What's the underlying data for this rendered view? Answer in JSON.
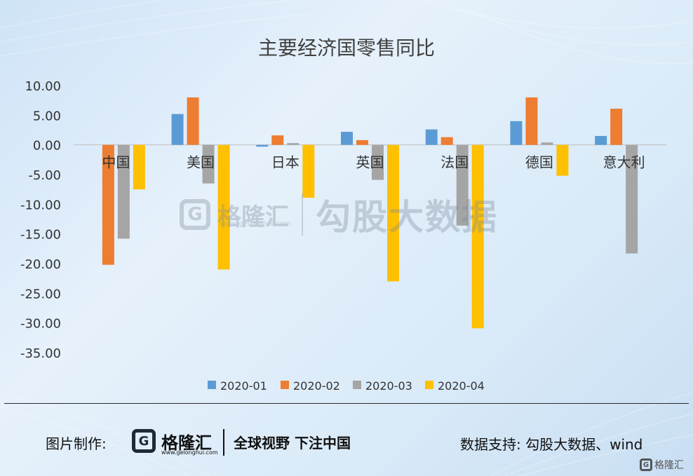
{
  "chart_data": {
    "type": "bar",
    "title": "主要经济国零售同比",
    "categories": [
      "中国",
      "美国",
      "日本",
      "英国",
      "法国",
      "德国",
      "意大利"
    ],
    "ylim": [
      -35,
      10
    ],
    "yticks": [
      "10.00",
      "5.00",
      "0.00",
      "-5.00",
      "-10.00",
      "-15.00",
      "-20.00",
      "-25.00",
      "-30.00",
      "-35.00"
    ],
    "grid": false,
    "legend_position": "bottom",
    "series": [
      {
        "name": "2020-01",
        "color": "#5b9bd5",
        "values": [
          null,
          5.2,
          -0.3,
          2.2,
          2.6,
          4.0,
          1.5
        ]
      },
      {
        "name": "2020-02",
        "color": "#ed7d31",
        "values": [
          -20.2,
          8.0,
          1.6,
          0.8,
          1.3,
          8.0,
          6.1
        ]
      },
      {
        "name": "2020-03",
        "color": "#a5a5a5",
        "values": [
          -15.8,
          -6.5,
          0.3,
          -5.9,
          -13.6,
          0.4,
          -18.3
        ]
      },
      {
        "name": "2020-04",
        "color": "#ffc000",
        "values": [
          -7.5,
          -21.0,
          -8.9,
          -23.0,
          -30.9,
          -5.2,
          null
        ]
      }
    ]
  },
  "watermark": {
    "brand": "格隆汇",
    "url": "www.gelonghui.com",
    "text": "勾股大数据"
  },
  "footer": {
    "made_by_label": "图片制作:",
    "brand": "格隆汇",
    "url": "www.gelonghui.com",
    "slogan": "全球视野 下注中国",
    "source": "数据支持: 勾股大数据、wind"
  },
  "corner": {
    "brand": "格隆汇"
  }
}
